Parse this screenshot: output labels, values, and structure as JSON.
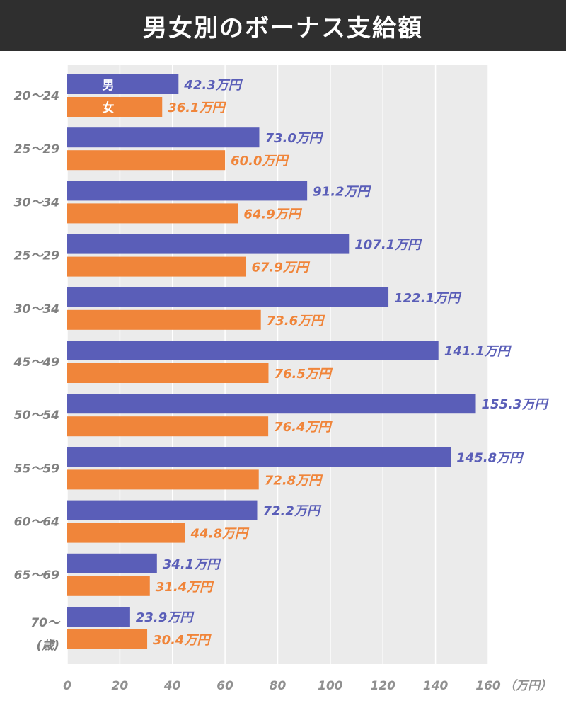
{
  "title": "男女別のボーナス支給額",
  "colors": {
    "male": "#5a5eb8",
    "female": "#f0853a",
    "plot_bg": "#ebebeb",
    "title_bg": "#2f2f2f"
  },
  "chart_data": {
    "type": "bar",
    "orientation": "horizontal",
    "title": "男女別のボーナス支給額",
    "categories": [
      "20〜24",
      "25〜29",
      "30〜34",
      "25〜29",
      "30〜34",
      "45〜49",
      "50〜54",
      "55〜59",
      "60〜64",
      "65〜69",
      "70〜"
    ],
    "category_unit_label": "(歳)",
    "series": [
      {
        "name": "男",
        "values": [
          42.3,
          73.0,
          91.2,
          107.1,
          122.1,
          141.1,
          155.3,
          145.8,
          72.2,
          34.1,
          23.9
        ]
      },
      {
        "name": "女",
        "values": [
          36.1,
          60.0,
          64.9,
          67.9,
          73.6,
          76.5,
          76.4,
          72.8,
          44.8,
          31.4,
          30.4
        ]
      }
    ],
    "value_suffix": "万円",
    "xlim": [
      0,
      160
    ],
    "xticks": [
      0,
      20,
      40,
      60,
      80,
      100,
      120,
      140,
      160
    ],
    "x_unit_label": "（万円）",
    "grid": true,
    "legend": "inside first group"
  }
}
